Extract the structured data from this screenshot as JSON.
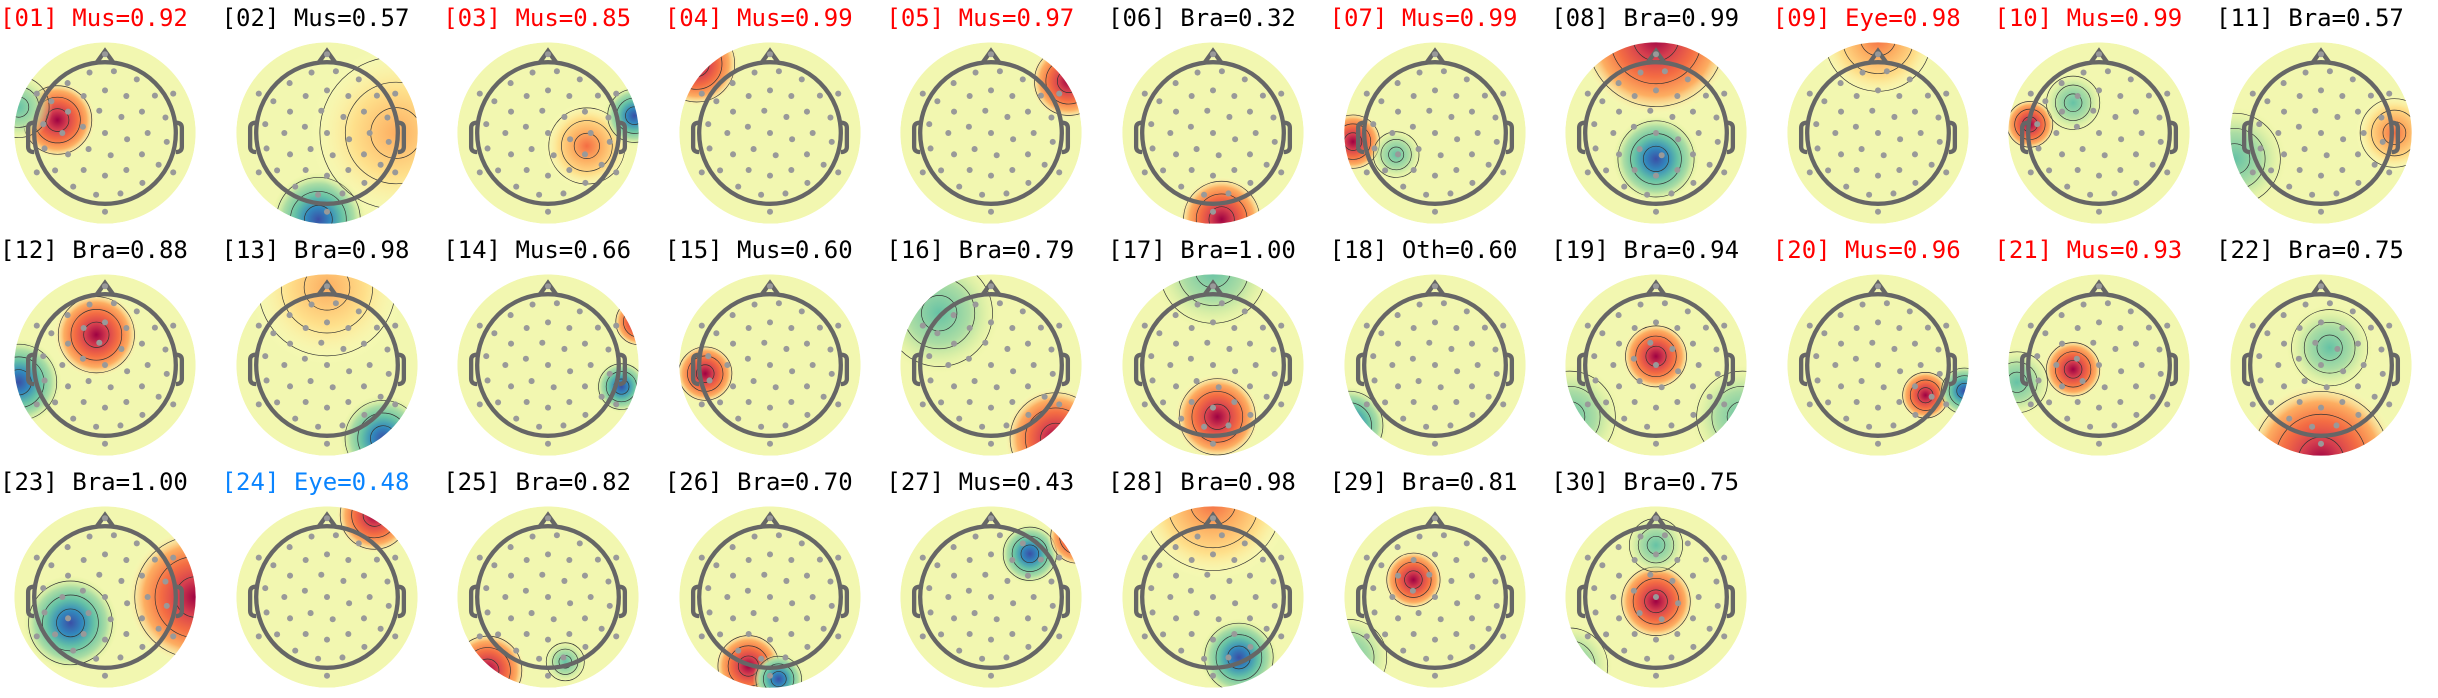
{
  "colors": {
    "flagged": "#ff0000",
    "uncertain": "#0a84ff",
    "normal": "#000000"
  },
  "components": [
    {
      "index": "[01]",
      "label": "Mus=0.92",
      "status": "flagged"
    },
    {
      "index": "[02]",
      "label": "Mus=0.57",
      "status": "normal"
    },
    {
      "index": "[03]",
      "label": "Mus=0.85",
      "status": "flagged"
    },
    {
      "index": "[04]",
      "label": "Mus=0.99",
      "status": "flagged"
    },
    {
      "index": "[05]",
      "label": "Mus=0.97",
      "status": "flagged"
    },
    {
      "index": "[06]",
      "label": "Bra=0.32",
      "status": "normal"
    },
    {
      "index": "[07]",
      "label": "Mus=0.99",
      "status": "flagged"
    },
    {
      "index": "[08]",
      "label": "Bra=0.99",
      "status": "normal"
    },
    {
      "index": "[09]",
      "label": "Eye=0.98",
      "status": "flagged"
    },
    {
      "index": "[10]",
      "label": "Mus=0.99",
      "status": "flagged"
    },
    {
      "index": "[11]",
      "label": "Bra=0.57",
      "status": "normal"
    },
    {
      "index": "[12]",
      "label": "Bra=0.88",
      "status": "normal"
    },
    {
      "index": "[13]",
      "label": "Bra=0.98",
      "status": "normal"
    },
    {
      "index": "[14]",
      "label": "Mus=0.66",
      "status": "normal"
    },
    {
      "index": "[15]",
      "label": "Mus=0.60",
      "status": "normal"
    },
    {
      "index": "[16]",
      "label": "Bra=0.79",
      "status": "normal"
    },
    {
      "index": "[17]",
      "label": "Bra=1.00",
      "status": "normal"
    },
    {
      "index": "[18]",
      "label": "Oth=0.60",
      "status": "normal"
    },
    {
      "index": "[19]",
      "label": "Bra=0.94",
      "status": "normal"
    },
    {
      "index": "[20]",
      "label": "Mus=0.96",
      "status": "flagged"
    },
    {
      "index": "[21]",
      "label": "Mus=0.93",
      "status": "flagged"
    },
    {
      "index": "[22]",
      "label": "Bra=0.75",
      "status": "normal"
    },
    {
      "index": "[23]",
      "label": "Bra=1.00",
      "status": "normal"
    },
    {
      "index": "[24]",
      "label": "Eye=0.48",
      "status": "uncertain"
    },
    {
      "index": "[25]",
      "label": "Bra=0.82",
      "status": "normal"
    },
    {
      "index": "[26]",
      "label": "Bra=0.70",
      "status": "normal"
    },
    {
      "index": "[27]",
      "label": "Mus=0.43",
      "status": "normal"
    },
    {
      "index": "[28]",
      "label": "Bra=0.98",
      "status": "normal"
    },
    {
      "index": "[29]",
      "label": "Bra=0.81",
      "status": "normal"
    },
    {
      "index": "[30]",
      "label": "Bra=0.75",
      "status": "normal"
    }
  ]
}
